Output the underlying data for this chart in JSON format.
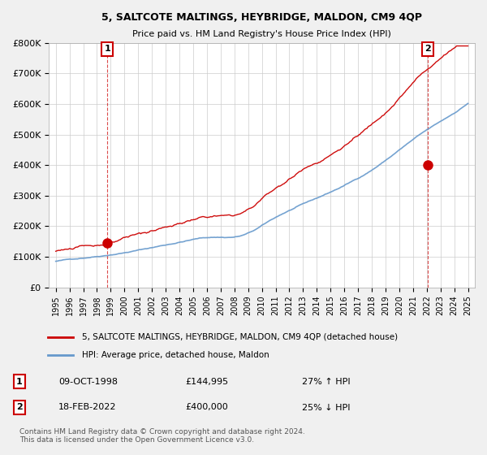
{
  "title": "5, SALTCOTE MALTINGS, HEYBRIDGE, MALDON, CM9 4QP",
  "subtitle": "Price paid vs. HM Land Registry's House Price Index (HPI)",
  "ylim": [
    0,
    800000
  ],
  "yticks": [
    0,
    100000,
    200000,
    300000,
    400000,
    500000,
    600000,
    700000,
    800000
  ],
  "ylabel_format": "£{0}K",
  "sale1_date": "09-OCT-1998",
  "sale1_price": 144995,
  "sale1_label": "27% ↑ HPI",
  "sale2_date": "18-FEB-2022",
  "sale2_price": 400000,
  "sale2_label": "25% ↓ HPI",
  "legend_property": "5, SALTCOTE MALTINGS, HEYBRIDGE, MALDON, CM9 4QP (detached house)",
  "legend_hpi": "HPI: Average price, detached house, Maldon",
  "copyright": "Contains HM Land Registry data © Crown copyright and database right 2024.\nThis data is licensed under the Open Government Licence v3.0.",
  "property_color": "#cc0000",
  "hpi_color": "#6699cc",
  "sale_marker_color": "#cc0000",
  "background_color": "#f0f0f0",
  "plot_bg_color": "#ffffff",
  "grid_color": "#cccccc"
}
